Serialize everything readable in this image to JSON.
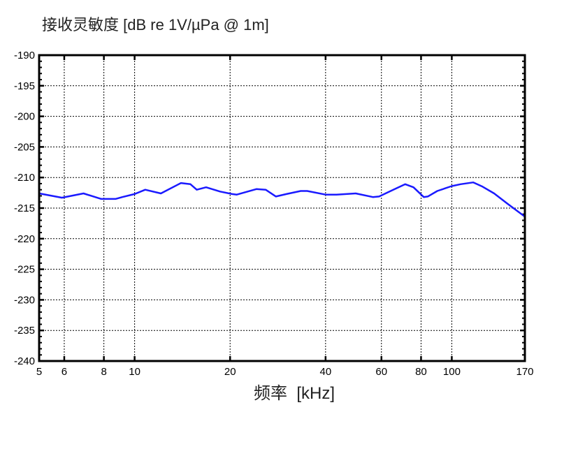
{
  "chart_data": {
    "type": "line",
    "title": "接收灵敏度 [dB re 1V/µPa @ 1m]",
    "title_cn": "接收灵敏度",
    "title_unit": "[dB re 1V/µPa @ 1m]",
    "xlabel": "频率 [kHz]",
    "xlabel_cn": "频率",
    "xlabel_unit": "[kHz]",
    "ylabel": "",
    "xscale": "log",
    "xlim": [
      5,
      170
    ],
    "ylim": [
      -240,
      -190
    ],
    "xticks": [
      5,
      6,
      8,
      10,
      20,
      40,
      60,
      80,
      100,
      170
    ],
    "yticks": [
      -190,
      -195,
      -200,
      -205,
      -210,
      -215,
      -220,
      -225,
      -230,
      -235,
      -240
    ],
    "grid": true,
    "line_color": "#1a1aff",
    "series": [
      {
        "x": [
          5,
          5.9,
          6.9,
          7.85,
          8.7,
          9.15,
          10,
          10.8,
          12.1,
          14.0,
          15.0,
          15.7,
          16.8,
          18.6,
          20.3,
          21.0,
          24.2,
          25.9,
          27.9,
          30.1,
          33.4,
          35,
          40,
          43.3,
          49.8,
          56.4,
          59,
          65.4,
          71.3,
          75.7,
          81.6,
          84,
          90,
          100,
          106.6,
          116.9,
          125,
          136,
          150,
          170
        ],
        "y": [
          -212.6,
          -213.3,
          -212.6,
          -213.5,
          -213.5,
          -213.2,
          -212.7,
          -212.0,
          -212.6,
          -210.9,
          -211.1,
          -212.0,
          -211.6,
          -212.3,
          -212.7,
          -212.8,
          -211.9,
          -212.0,
          -213.1,
          -212.7,
          -212.2,
          -212.2,
          -212.8,
          -212.8,
          -212.6,
          -213.2,
          -213.1,
          -212.0,
          -211.1,
          -211.6,
          -213.2,
          -213.1,
          -212.2,
          -211.4,
          -211.1,
          -210.8,
          -211.5,
          -212.6,
          -214.3,
          -216.4
        ]
      }
    ]
  }
}
